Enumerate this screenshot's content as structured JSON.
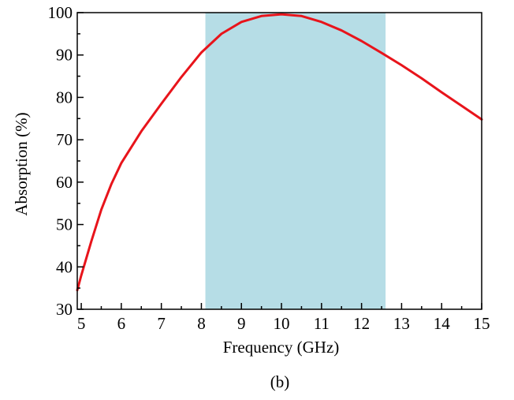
{
  "chart_data": {
    "type": "line",
    "title": "",
    "caption": "(b)",
    "xlabel": "Frequency (GHz)",
    "ylabel": "Absorption (%)",
    "xlim": [
      4.9,
      15
    ],
    "ylim": [
      30,
      100
    ],
    "x_ticks": [
      5,
      6,
      7,
      8,
      9,
      10,
      11,
      12,
      13,
      14,
      15
    ],
    "y_ticks": [
      30,
      40,
      50,
      60,
      70,
      80,
      90,
      100
    ],
    "x_tick_labels": [
      "5",
      "6",
      "7",
      "8",
      "9",
      "10",
      "11",
      "12",
      "13",
      "14",
      "15"
    ],
    "y_tick_labels": [
      "30",
      "40",
      "50",
      "60",
      "70",
      "80",
      "90",
      "100"
    ],
    "grid": false,
    "legend": "none",
    "shaded_band": {
      "x_start": 8.1,
      "x_end": 12.6,
      "color": "#b6dde6"
    },
    "series": [
      {
        "color": "#e8141b",
        "x": [
          4.9,
          5.0,
          5.25,
          5.5,
          5.75,
          6.0,
          6.5,
          7.0,
          7.5,
          8.0,
          8.5,
          9.0,
          9.5,
          10.0,
          10.5,
          11.0,
          11.5,
          12.0,
          12.5,
          13.0,
          13.5,
          14.0,
          14.5,
          15.0
        ],
        "y": [
          34.5,
          38.0,
          46.0,
          53.5,
          59.5,
          64.5,
          72.0,
          78.5,
          84.8,
          90.6,
          95.0,
          97.8,
          99.2,
          99.6,
          99.2,
          97.8,
          95.8,
          93.3,
          90.5,
          87.6,
          84.5,
          81.2,
          78.0,
          74.8
        ]
      }
    ]
  }
}
